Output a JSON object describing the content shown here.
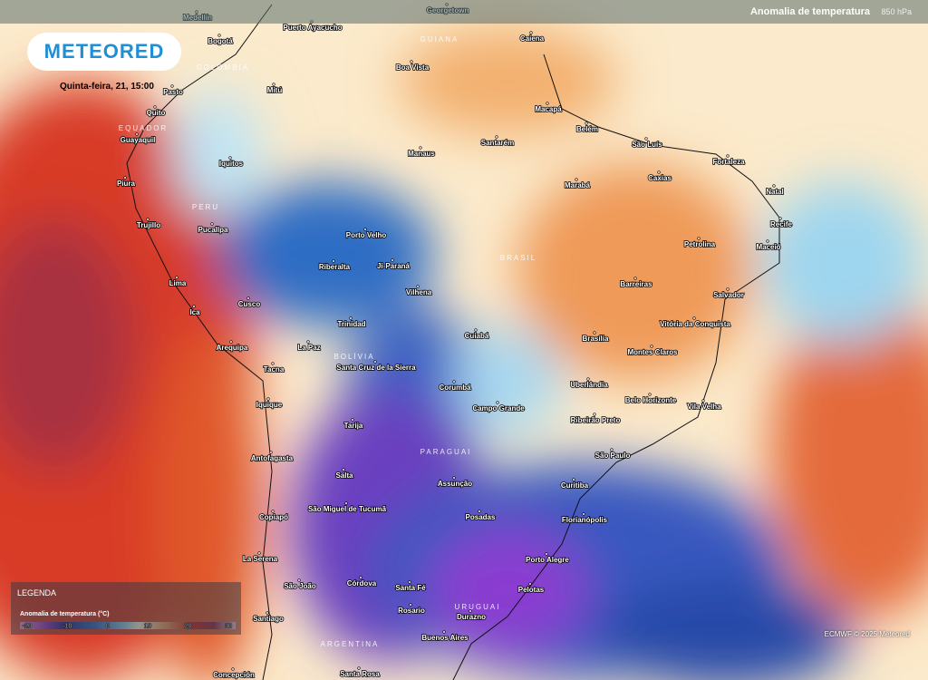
{
  "header": {
    "layer": "Anomalia de temperatura",
    "level": "850 hPa"
  },
  "logo": "METEORED",
  "date": "Quinta-feira, 21, 15:00",
  "legend": {
    "title": "LEGENDA",
    "subtitle": "Anomalia de temperatura (°C)",
    "ticks": [
      -20,
      -10,
      0,
      10,
      20,
      30
    ]
  },
  "credit": "ECMWF © 2025 Meteored",
  "countries": [
    "GUIANA",
    "COLÔMBIA",
    "EQUADOR",
    "PERU",
    "BRASIL",
    "BOLÍVIA",
    "PARAGUAI",
    "URUGUAI",
    "ARGENTINA"
  ],
  "cities": [
    "Medellín",
    "Bogotá",
    "Puerto Ayacucho",
    "Georgetown",
    "Caiena",
    "Boa Vista",
    "Pasto",
    "Mitú",
    "Quito",
    "Guayaquil",
    "Macapá",
    "Belém",
    "São Luís",
    "Fortaleza",
    "Manaus",
    "Santarém",
    "Iquitos",
    "Caxias",
    "Marabá",
    "Natal",
    "Piura",
    "Recife",
    "Trujillo",
    "Pucallpa",
    "Porto Velho",
    "Petrolina",
    "Maceió",
    "Riberalta",
    "Ji-Paraná",
    "Barreiras",
    "Lima",
    "Vilhena",
    "Salvador",
    "Cusco",
    "Trinidad",
    "Vitória da Conquista",
    "Ica",
    "Cuiabá",
    "Brasília",
    "La Paz",
    "Montes Claros",
    "Arequipa",
    "Santa Cruz de la Sierra",
    "Tacna",
    "Uberlândia",
    "Corumbá",
    "Belo Horizonte",
    "Iquique",
    "Vila Velha",
    "Campo Grande",
    "Ribeirão Preto",
    "Tarija",
    "São Paulo",
    "Antofagasta",
    "Salta",
    "Assunção",
    "Curitiba",
    "São Miguel de Tucumã",
    "Posadas",
    "Florianópolis",
    "Copiapó",
    "Porto Alegre",
    "La Serena",
    "Córdova",
    "São João",
    "Santa Fé",
    "Pelotas",
    "Rosario",
    "Durazno",
    "Santiago",
    "Buenos Aires",
    "Santa Rosa",
    "Concepción"
  ]
}
